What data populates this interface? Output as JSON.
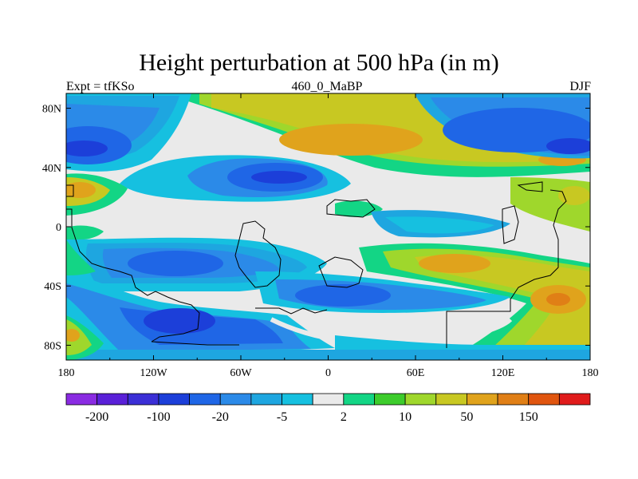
{
  "chart_data": {
    "type": "heatmap",
    "title": "Height perturbation at 500 hPa (in m)",
    "left_subtitle": "Expt = tfKSo",
    "center_subtitle": "460_0_MaBP",
    "right_subtitle": "DJF",
    "x_ticks": [
      "180",
      "120W",
      "60W",
      "0",
      "60E",
      "120E",
      "180"
    ],
    "y_ticks": [
      "80N",
      "40N",
      "0",
      "40S",
      "80S"
    ],
    "xlim": [
      -180,
      180
    ],
    "ylim": [
      -90,
      90
    ],
    "colorbar": {
      "colors": [
        "#8a2be2",
        "#5a20d8",
        "#3b2fd6",
        "#1c3fd9",
        "#1f66e6",
        "#2b8ae8",
        "#1ea6e0",
        "#16c0e0",
        "#eaeaea",
        "#13d585",
        "#3dcc2c",
        "#9fd72c",
        "#c8c822",
        "#e0a31c",
        "#e07f16",
        "#e0550f",
        "#e01b1b"
      ],
      "labels": [
        "-200",
        "-100",
        "-20",
        "-5",
        "2",
        "10",
        "50",
        "150"
      ]
    },
    "grid": false
  }
}
